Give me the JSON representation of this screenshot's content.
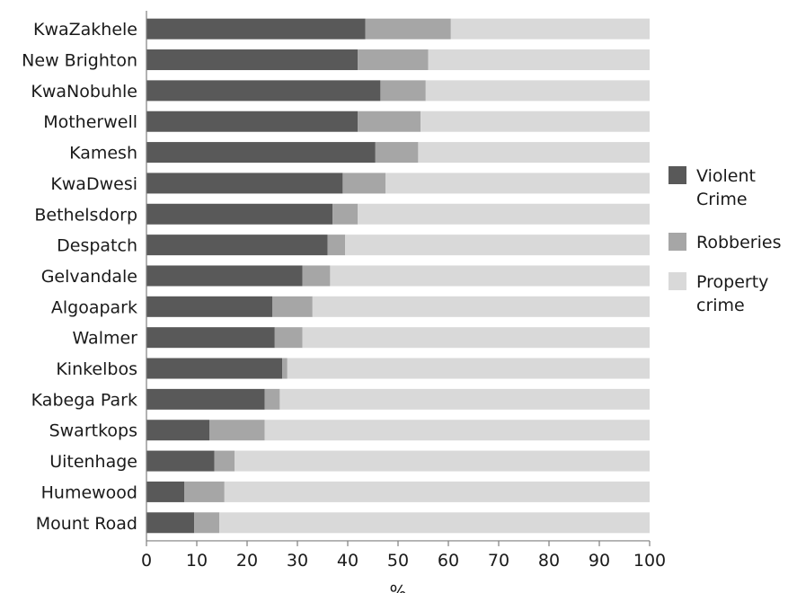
{
  "chart_data": {
    "type": "bar",
    "orientation": "horizontal",
    "stacked": true,
    "categories": [
      "KwaZakhele",
      "New Brighton",
      "KwaNobuhle",
      "Motherwell",
      "Kamesh",
      "KwaDwesi",
      "Bethelsdorp",
      "Despatch",
      "Gelvandale",
      "Algoapark",
      "Walmer",
      "Kinkelbos",
      "Kabega Park",
      "Swartkops",
      "Uitenhage",
      "Humewood",
      "Mount Road"
    ],
    "series": [
      {
        "name": "Violent Crime",
        "color": "#595959",
        "values": [
          43.5,
          42,
          46.5,
          42,
          45.5,
          39,
          37,
          36,
          31,
          25,
          25.5,
          27,
          23.5,
          12.5,
          13.5,
          7.5,
          9.5
        ]
      },
      {
        "name": "Robberies",
        "color": "#a6a6a6",
        "values": [
          17,
          14,
          9,
          12.5,
          8.5,
          8.5,
          5,
          3.5,
          5.5,
          8,
          5.5,
          1,
          3,
          11,
          4,
          8,
          5
        ]
      },
      {
        "name": "Property crime",
        "color": "#d9d9d9",
        "values": [
          39.5,
          44,
          44.5,
          45.5,
          46,
          52.5,
          58,
          60.5,
          63.5,
          67,
          69,
          72,
          73.5,
          76.5,
          82.5,
          84.5,
          85.5
        ]
      }
    ],
    "legend": {
      "position": "right",
      "entries": [
        {
          "lines": [
            "Violent",
            "Crime"
          ],
          "color": "#595959"
        },
        {
          "lines": [
            "Robberies"
          ],
          "color": "#a6a6a6"
        },
        {
          "lines": [
            "Property",
            "crime"
          ],
          "color": "#d9d9d9"
        }
      ]
    },
    "xlabel": "%",
    "ylabel": "",
    "xlim": [
      0,
      100
    ],
    "xticks": [
      0,
      10,
      20,
      30,
      40,
      50,
      60,
      70,
      80,
      90,
      100
    ],
    "grid": false
  }
}
